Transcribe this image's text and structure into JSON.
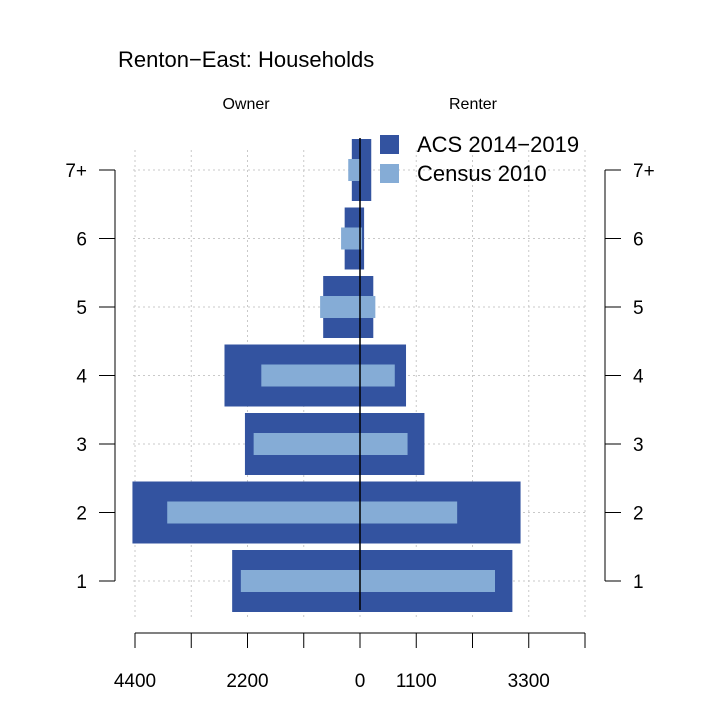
{
  "chart_data": {
    "type": "bar",
    "orientation": "horizontal-pyramid",
    "title": "Renton−East: Households",
    "left_label": "Owner",
    "right_label": "Renter",
    "categories": [
      "1",
      "2",
      "3",
      "4",
      "5",
      "6",
      "7+"
    ],
    "x_ticks": [
      -4400,
      -3300,
      -2200,
      -1100,
      0,
      1100,
      2200,
      3300,
      4400
    ],
    "x_tick_labels": [
      "4400",
      "",
      "2200",
      "",
      "0",
      "1100",
      "",
      "3300",
      ""
    ],
    "xlim": [
      -4400,
      4400
    ],
    "grid": true,
    "legend_position": "top-right",
    "series": [
      {
        "name": "ACS 2014−2019",
        "color": "#3353a0",
        "owner": [
          2500,
          4450,
          2250,
          2650,
          720,
          300,
          160
        ],
        "renter": [
          2980,
          3140,
          1260,
          900,
          260,
          80,
          220
        ]
      },
      {
        "name": "Census 2010",
        "color": "#85acd6",
        "owner": [
          2330,
          3770,
          2080,
          1930,
          780,
          370,
          230
        ],
        "renter": [
          2640,
          1900,
          930,
          680,
          300,
          40,
          10
        ]
      }
    ]
  }
}
